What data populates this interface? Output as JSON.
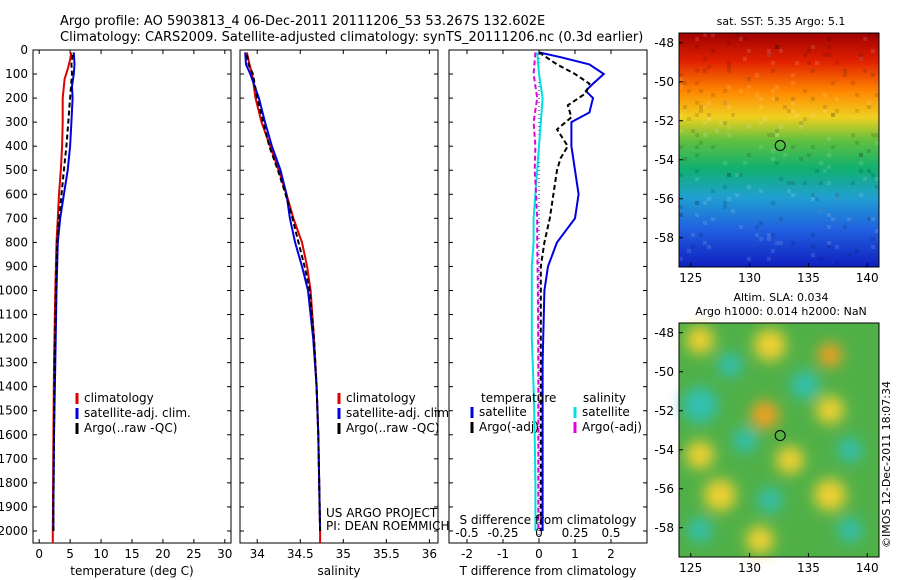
{
  "title_line1": "Argo profile: AO 5903813_4 06-Dec-2011 20111206_53 53.267S 132.602E",
  "title_line2": "Climatology: CARS2009. Satellite-adjusted climatology: synTS_20111206.nc (0.3d earlier)",
  "colors": {
    "climatology": "#e00000",
    "satellite": "#0000e0",
    "argo": "#000000",
    "s_sat": "#00e0e0",
    "s_argo": "#e000e0"
  },
  "chart_data": [
    {
      "type": "line",
      "xlabel": "temperature (deg C)",
      "xlim": [
        -1,
        31
      ],
      "xticks": [
        "0",
        "5",
        "10",
        "15",
        "20",
        "25",
        "30"
      ],
      "ylim": [
        0,
        2050
      ],
      "yticks": [
        "0",
        "100",
        "200",
        "300",
        "400",
        "500",
        "600",
        "700",
        "800",
        "900",
        "1000",
        "1100",
        "1200",
        "1300",
        "1400",
        "1500",
        "1600",
        "1700",
        "1800",
        "1900",
        "2000"
      ],
      "legend": [
        "climatology",
        "satellite-adj. clim.",
        "Argo(..raw -QC)"
      ],
      "series": [
        {
          "name": "climatology",
          "color": "#e00000",
          "dash": "",
          "points": [
            [
              5.2,
              10
            ],
            [
              5.0,
              40
            ],
            [
              4.6,
              80
            ],
            [
              4.1,
              120
            ],
            [
              3.8,
              200
            ],
            [
              3.8,
              300
            ],
            [
              3.7,
              400
            ],
            [
              3.5,
              500
            ],
            [
              3.2,
              600
            ],
            [
              3.0,
              700
            ],
            [
              2.8,
              800
            ],
            [
              2.6,
              1000
            ],
            [
              2.4,
              1300
            ],
            [
              2.3,
              1600
            ],
            [
              2.2,
              2000
            ],
            [
              2.2,
              2050
            ]
          ]
        },
        {
          "name": "satellite-adj. clim.",
          "color": "#0000e0",
          "dash": "",
          "points": [
            [
              5.6,
              10
            ],
            [
              5.7,
              60
            ],
            [
              5.6,
              100
            ],
            [
              5.3,
              150
            ],
            [
              5.4,
              200
            ],
            [
              5.2,
              300
            ],
            [
              5.0,
              400
            ],
            [
              4.6,
              500
            ],
            [
              4.0,
              600
            ],
            [
              3.4,
              700
            ],
            [
              3.0,
              800
            ],
            [
              2.8,
              1000
            ],
            [
              2.6,
              1300
            ],
            [
              2.4,
              1600
            ],
            [
              2.3,
              1900
            ],
            [
              2.3,
              2000
            ]
          ]
        },
        {
          "name": "Argo(..raw -QC)",
          "color": "#000000",
          "dash": "5,3",
          "points": [
            [
              5.4,
              20
            ],
            [
              5.2,
              60
            ],
            [
              5.3,
              100
            ],
            [
              5.0,
              200
            ],
            [
              4.7,
              300
            ],
            [
              4.4,
              400
            ],
            [
              4.0,
              500
            ],
            [
              3.6,
              600
            ],
            [
              3.2,
              700
            ],
            [
              2.9,
              800
            ],
            [
              2.7,
              1000
            ],
            [
              2.5,
              1300
            ],
            [
              2.4,
              1600
            ],
            [
              2.3,
              1900
            ],
            [
              2.3,
              2000
            ]
          ]
        }
      ]
    },
    {
      "type": "line",
      "xlabel": "salinity",
      "xlim": [
        33.8,
        36.1
      ],
      "xticks": [
        "34",
        "34.5",
        "35",
        "35.5",
        "36"
      ],
      "ylim": [
        0,
        2050
      ],
      "legend": [
        "climatology",
        "satellite-adj. clim.",
        "Argo(..raw -QC)"
      ],
      "annotation": [
        "US ARGO PROJECT",
        "PI: DEAN ROEMMICH"
      ],
      "series": [
        {
          "name": "climatology",
          "color": "#e00000",
          "dash": "",
          "points": [
            [
              33.88,
              10
            ],
            [
              33.91,
              60
            ],
            [
              33.94,
              100
            ],
            [
              33.98,
              200
            ],
            [
              34.05,
              300
            ],
            [
              34.15,
              400
            ],
            [
              34.25,
              500
            ],
            [
              34.34,
              600
            ],
            [
              34.42,
              700
            ],
            [
              34.52,
              800
            ],
            [
              34.58,
              900
            ],
            [
              34.62,
              1000
            ],
            [
              34.66,
              1200
            ],
            [
              34.69,
              1400
            ],
            [
              34.71,
              1600
            ],
            [
              34.72,
              1800
            ],
            [
              34.73,
              2000
            ],
            [
              34.73,
              2050
            ]
          ]
        },
        {
          "name": "satellite-adj. clim.",
          "color": "#0000e0",
          "dash": "",
          "points": [
            [
              33.86,
              10
            ],
            [
              33.87,
              60
            ],
            [
              33.92,
              100
            ],
            [
              34.02,
              200
            ],
            [
              34.09,
              300
            ],
            [
              34.17,
              400
            ],
            [
              34.27,
              500
            ],
            [
              34.34,
              600
            ],
            [
              34.38,
              700
            ],
            [
              34.44,
              800
            ],
            [
              34.52,
              900
            ],
            [
              34.59,
              1000
            ],
            [
              34.65,
              1200
            ],
            [
              34.69,
              1400
            ],
            [
              34.71,
              1600
            ],
            [
              34.72,
              1800
            ],
            [
              34.73,
              2000
            ]
          ]
        },
        {
          "name": "Argo(..raw -QC)",
          "color": "#000000",
          "dash": "5,3",
          "points": [
            [
              33.88,
              20
            ],
            [
              33.9,
              60
            ],
            [
              33.95,
              100
            ],
            [
              34.0,
              200
            ],
            [
              34.07,
              300
            ],
            [
              34.14,
              400
            ],
            [
              34.24,
              500
            ],
            [
              34.33,
              600
            ],
            [
              34.41,
              700
            ],
            [
              34.48,
              800
            ],
            [
              34.55,
              900
            ],
            [
              34.61,
              1000
            ],
            [
              34.66,
              1200
            ],
            [
              34.69,
              1400
            ],
            [
              34.71,
              1600
            ],
            [
              34.72,
              1800
            ],
            [
              34.73,
              2000
            ]
          ]
        }
      ]
    },
    {
      "type": "line",
      "xlabel": "T difference from climatology",
      "xlim": [
        -2.5,
        3.0
      ],
      "xticks": [
        "-2",
        "-1",
        "0",
        "1",
        "2"
      ],
      "top_xlabel": "S difference from climatology",
      "top_xticks": [
        "-0.5",
        "-0.25",
        "0",
        "0.25",
        "0.5"
      ],
      "ylim": [
        0,
        2050
      ],
      "legend_headers": [
        "temperature",
        "salinity"
      ],
      "legend": [
        "satellite",
        "Argo(-adj)",
        "satellite",
        "Argo(-adj)"
      ],
      "series": [
        {
          "name": "satellite",
          "color": "#0000e0",
          "dash": "",
          "points": [
            [
              0.0,
              10
            ],
            [
              0.6,
              30
            ],
            [
              1.4,
              60
            ],
            [
              1.8,
              100
            ],
            [
              1.5,
              140
            ],
            [
              1.3,
              170
            ],
            [
              1.5,
              200
            ],
            [
              1.4,
              260
            ],
            [
              0.9,
              300
            ],
            [
              0.9,
              400
            ],
            [
              1.0,
              500
            ],
            [
              1.1,
              600
            ],
            [
              1.0,
              700
            ],
            [
              0.5,
              800
            ],
            [
              0.25,
              900
            ],
            [
              0.15,
              1000
            ],
            [
              0.1,
              1300
            ],
            [
              0.1,
              1600
            ],
            [
              0.1,
              2000
            ]
          ]
        },
        {
          "name": "Argo(-adj)",
          "color": "#000000",
          "dash": "5,3",
          "points": [
            [
              0.0,
              10
            ],
            [
              0.5,
              60
            ],
            [
              1.0,
              100
            ],
            [
              1.4,
              140
            ],
            [
              1.3,
              180
            ],
            [
              0.8,
              230
            ],
            [
              0.9,
              280
            ],
            [
              0.5,
              330
            ],
            [
              0.8,
              400
            ],
            [
              0.6,
              450
            ],
            [
              0.5,
              500
            ],
            [
              0.4,
              600
            ],
            [
              0.3,
              700
            ],
            [
              0.15,
              800
            ],
            [
              0.05,
              900
            ],
            [
              0.05,
              1000
            ],
            [
              0.05,
              1300
            ],
            [
              0.05,
              1600
            ],
            [
              0.05,
              2000
            ]
          ]
        },
        {
          "name": "satellite (S)",
          "color": "#00e0e0",
          "dash": "",
          "points": [
            [
              -0.05,
              10
            ],
            [
              0.0,
              100
            ],
            [
              0.1,
              200
            ],
            [
              0.05,
              300
            ],
            [
              0.0,
              400
            ],
            [
              -0.05,
              500
            ],
            [
              -0.1,
              600
            ],
            [
              -0.15,
              700
            ],
            [
              -0.15,
              800
            ],
            [
              -0.2,
              900
            ],
            [
              -0.2,
              1000
            ],
            [
              -0.2,
              1200
            ],
            [
              -0.15,
              1400
            ],
            [
              -0.12,
              1600
            ],
            [
              -0.1,
              1800
            ],
            [
              -0.1,
              2000
            ]
          ]
        },
        {
          "name": "Argo(-adj) (S)",
          "color": "#e000e0",
          "dash": "5,3",
          "points": [
            [
              -0.1,
              10
            ],
            [
              -0.15,
              100
            ],
            [
              -0.05,
              200
            ],
            [
              -0.15,
              300
            ],
            [
              -0.1,
              400
            ],
            [
              -0.12,
              500
            ],
            [
              -0.08,
              600
            ],
            [
              -0.05,
              700
            ],
            [
              -0.05,
              800
            ],
            [
              -0.03,
              1000
            ],
            [
              -0.02,
              1300
            ],
            [
              -0.02,
              1600
            ],
            [
              -0.02,
              2000
            ]
          ]
        }
      ]
    },
    {
      "type": "heatmap",
      "title": "sat. SST: 5.35 Argo: 5.1",
      "xlim": [
        124,
        141
      ],
      "ylim": [
        -59.5,
        -47.5
      ],
      "xticks": [
        "125",
        "130",
        "135",
        "140"
      ],
      "yticks": [
        "-48",
        "-50",
        "-52",
        "-54",
        "-56",
        "-58"
      ],
      "marker": [
        132.6,
        -53.27
      ]
    },
    {
      "type": "heatmap",
      "title_lines": [
        "Altim. SLA: 0.034",
        "Argo h1000: 0.014 h2000: NaN"
      ],
      "xlim": [
        124,
        141
      ],
      "ylim": [
        -59.5,
        -47.5
      ],
      "xticks": [
        "125",
        "130",
        "135",
        "140"
      ],
      "yticks": [
        "-48",
        "-50",
        "-52",
        "-54",
        "-56",
        "-58"
      ],
      "marker": [
        132.6,
        -53.27
      ]
    }
  ],
  "stamp": "©IMOS 12-Dec-2011 18:07:34"
}
